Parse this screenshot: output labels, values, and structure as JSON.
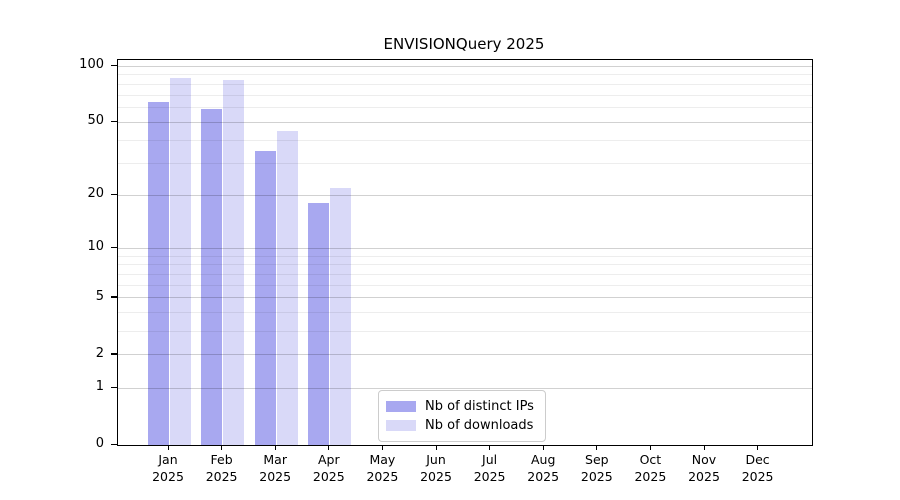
{
  "title": "ENVISIONQuery 2025",
  "colors": {
    "bar_distinct_ips": "#a8a8f0",
    "bar_downloads": "#d9d9f8",
    "axis": "#000000",
    "legend_border": "#cccccc"
  },
  "chart_data": {
    "type": "bar",
    "title": "ENVISIONQuery 2025",
    "categories": [
      "Jan",
      "Feb",
      "Mar",
      "Apr",
      "May",
      "Jun",
      "Jul",
      "Aug",
      "Sep",
      "Oct",
      "Nov",
      "Dec"
    ],
    "category_sublabel": "2025",
    "series": [
      {
        "name": "Nb of distinct IPs",
        "color": "#a8a8f0",
        "values": [
          64,
          59,
          35,
          18,
          null,
          null,
          null,
          null,
          null,
          null,
          null,
          null
        ]
      },
      {
        "name": "Nb of downloads",
        "color": "#d9d9f8",
        "values": [
          86,
          84,
          45,
          22,
          null,
          null,
          null,
          null,
          null,
          null,
          null,
          null
        ]
      }
    ],
    "xlabel": "",
    "ylabel": "",
    "y_scale": "log1p",
    "ylim": [
      0,
      105
    ],
    "y_ticks": [
      100,
      50,
      20,
      10,
      5,
      2,
      1,
      0
    ],
    "grid": "on",
    "grid_major_values": [
      1,
      2,
      5,
      10,
      20,
      50,
      100
    ],
    "grid_minor_values": [
      3,
      4,
      6,
      7,
      8,
      9,
      30,
      40,
      60,
      70,
      80,
      90
    ],
    "legend_position": "lower center-left"
  }
}
